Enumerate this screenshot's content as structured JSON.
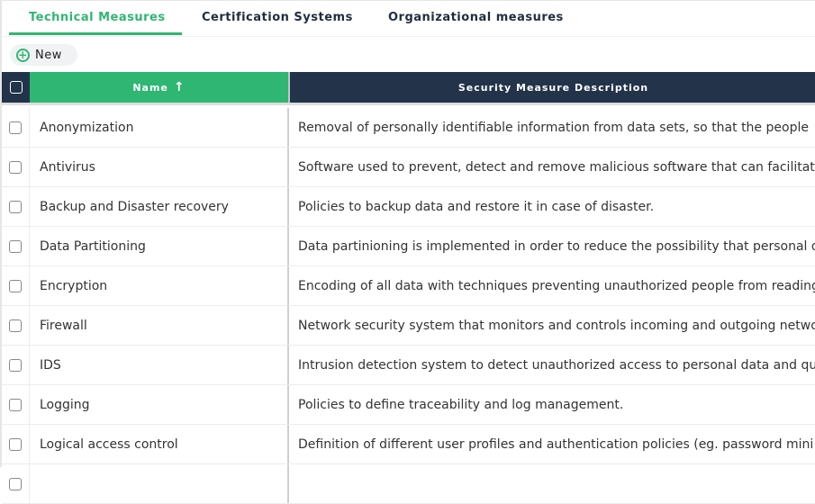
{
  "tabs": [
    {
      "label": "Technical Measures",
      "active": true
    },
    {
      "label": "Certification Systems",
      "active": false
    },
    {
      "label": "Organizational measures",
      "active": false
    }
  ],
  "toolbar": {
    "new_label": "New",
    "new_icon": "plus-circle-icon"
  },
  "table": {
    "headers": {
      "name": "Name",
      "sort_icon": "↑",
      "description": "Security Measure Description"
    },
    "rows": [
      {
        "name": "Anonymization",
        "description": "Removal of personally identifiable information from data sets, so that the people"
      },
      {
        "name": "Antivirus",
        "description": "Software used to prevent, detect and remove malicious software that can facilitat"
      },
      {
        "name": "Backup and Disaster recovery",
        "description": "Policies to backup data and restore it in case of disaster."
      },
      {
        "name": "Data Partitioning",
        "description": "Data partinioning is implemented in order to reduce the possibility that personal d"
      },
      {
        "name": "Encryption",
        "description": "Encoding of all data with techniques preventing unauthorized people from reading"
      },
      {
        "name": "Firewall",
        "description": "Network security system that monitors and controls incoming and outgoing netwo"
      },
      {
        "name": "IDS",
        "description": "Intrusion detection system to detect unauthorized access to personal data and qu"
      },
      {
        "name": "Logging",
        "description": "Policies to define traceability and log management."
      },
      {
        "name": "Logical access control",
        "description": "Definition of different user profiles and authentication policies (eg. password mini"
      },
      {
        "name": "",
        "description": ""
      }
    ]
  },
  "colors": {
    "accent": "#2fb673",
    "header_dark": "#22334a"
  }
}
